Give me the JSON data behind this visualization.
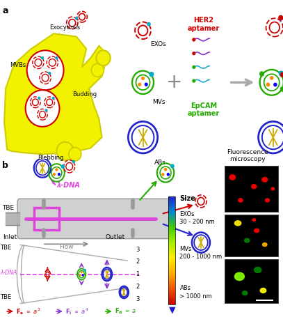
{
  "fig_width": 4.07,
  "fig_height": 4.55,
  "bg_color": "#ffffff",
  "exo_color": "#cc0000",
  "mv_color": "#22aa00",
  "ab_color": "#2222cc",
  "lambda_color": "#dd44dd",
  "her2_color": "#cc0000",
  "epcam_color": "#22aa00",
  "arrow_gray": "#aaaaaa",
  "cell_yellow": "#f0f000",
  "cell_edge": "#cccc00",
  "title_a": "a",
  "title_b": "b",
  "mvbs_label": "MVBs",
  "exocytosis_label": "Exocytosis",
  "budding_label": "Budding",
  "blebbing_label": "Blebbing",
  "exos_label": "EXOs",
  "mvs_label": "MVs",
  "abs_label": "ABs",
  "her2_label": "HER2\naptamer",
  "epcam_label": "EpCAM\naptamer",
  "tbe_label": "TBE",
  "flow_label": "Flow",
  "lambda_label": "λ-DNA",
  "size_label": "Size",
  "exos_size": "EXOs\n30 - 200 nm",
  "mvs_size": "MVs\n200 - 1000 nm",
  "abs_size": "ABs\n> 1000 nm",
  "inlet_label": "Inlet",
  "outlet_label": "Outlet",
  "fluor_label": "Fluorescence\nmicroscopy",
  "fe_label": "F_e ∝ a^3",
  "fi_label": "F_i ∝ a^4",
  "fd_label": "F_d ∝ a"
}
